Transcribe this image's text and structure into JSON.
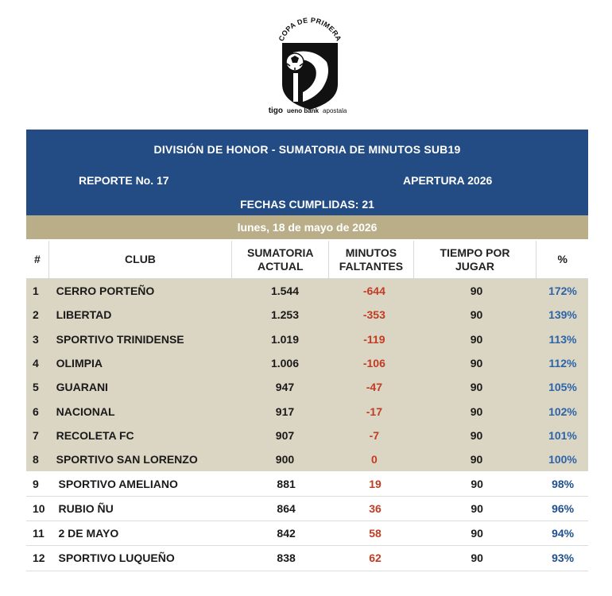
{
  "logo": {
    "arc_text": "COPA DE PRIMERA",
    "sponsors": [
      "tigo",
      "ueno bank",
      "apostala"
    ]
  },
  "banner": {
    "title": "DIVISIÓN DE HONOR - SUMATORIA DE MINUTOS SUB19",
    "report": "REPORTE No. 17",
    "season": "APERTURA 2026",
    "dates": "FECHAS CUMPLIDAS: 21",
    "color": "#224c83"
  },
  "date_bar": {
    "text": "lunes, 18 de mayo de 2026",
    "color": "#b9ae88"
  },
  "table": {
    "headers": {
      "rank": "#",
      "club": "CLUB",
      "suma_1": "SUMATORIA",
      "suma_2": "ACTUAL",
      "falt_1": "MINUTOS",
      "falt_2": "FALTANTES",
      "tiempo_1": "TIEMPO POR",
      "tiempo_2": "JUGAR",
      "pct": "%"
    },
    "rows": [
      {
        "rank": "1",
        "club": "CERRO PORTEÑO",
        "suma": "1.544",
        "falt": "-644",
        "tiempo": "90",
        "pct": "172%"
      },
      {
        "rank": "2",
        "club": "LIBERTAD",
        "suma": "1.253",
        "falt": "-353",
        "tiempo": "90",
        "pct": "139%"
      },
      {
        "rank": "3",
        "club": "SPORTIVO TRINIDENSE",
        "suma": "1.019",
        "falt": "-119",
        "tiempo": "90",
        "pct": "113%"
      },
      {
        "rank": "4",
        "club": "OLIMPIA",
        "suma": "1.006",
        "falt": "-106",
        "tiempo": "90",
        "pct": "112%"
      },
      {
        "rank": "5",
        "club": "GUARANI",
        "suma": "947",
        "falt": "-47",
        "tiempo": "90",
        "pct": "105%"
      },
      {
        "rank": "6",
        "club": "NACIONAL",
        "suma": "917",
        "falt": "-17",
        "tiempo": "90",
        "pct": "102%"
      },
      {
        "rank": "7",
        "club": "RECOLETA FC",
        "suma": "907",
        "falt": "-7",
        "tiempo": "90",
        "pct": "101%"
      },
      {
        "rank": "8",
        "club": "SPORTIVO SAN LORENZO",
        "suma": "900",
        "falt": "0",
        "tiempo": "90",
        "pct": "100%"
      },
      {
        "rank": "9",
        "club": "SPORTIVO AMELIANO",
        "suma": "881",
        "falt": "19",
        "tiempo": "90",
        "pct": "98%"
      },
      {
        "rank": "10",
        "club": "RUBIO ÑU",
        "suma": "864",
        "falt": "36",
        "tiempo": "90",
        "pct": "96%"
      },
      {
        "rank": "11",
        "club": "2 DE MAYO",
        "suma": "842",
        "falt": "58",
        "tiempo": "90",
        "pct": "94%"
      },
      {
        "rank": "12",
        "club": "SPORTIVO LUQUEÑO",
        "suma": "838",
        "falt": "62",
        "tiempo": "90",
        "pct": "93%"
      }
    ],
    "highlighted_rows": 8,
    "highlight_color": "#dbd5c3",
    "negative_color": "#c23b22",
    "pct_color": "#2c64a8"
  }
}
